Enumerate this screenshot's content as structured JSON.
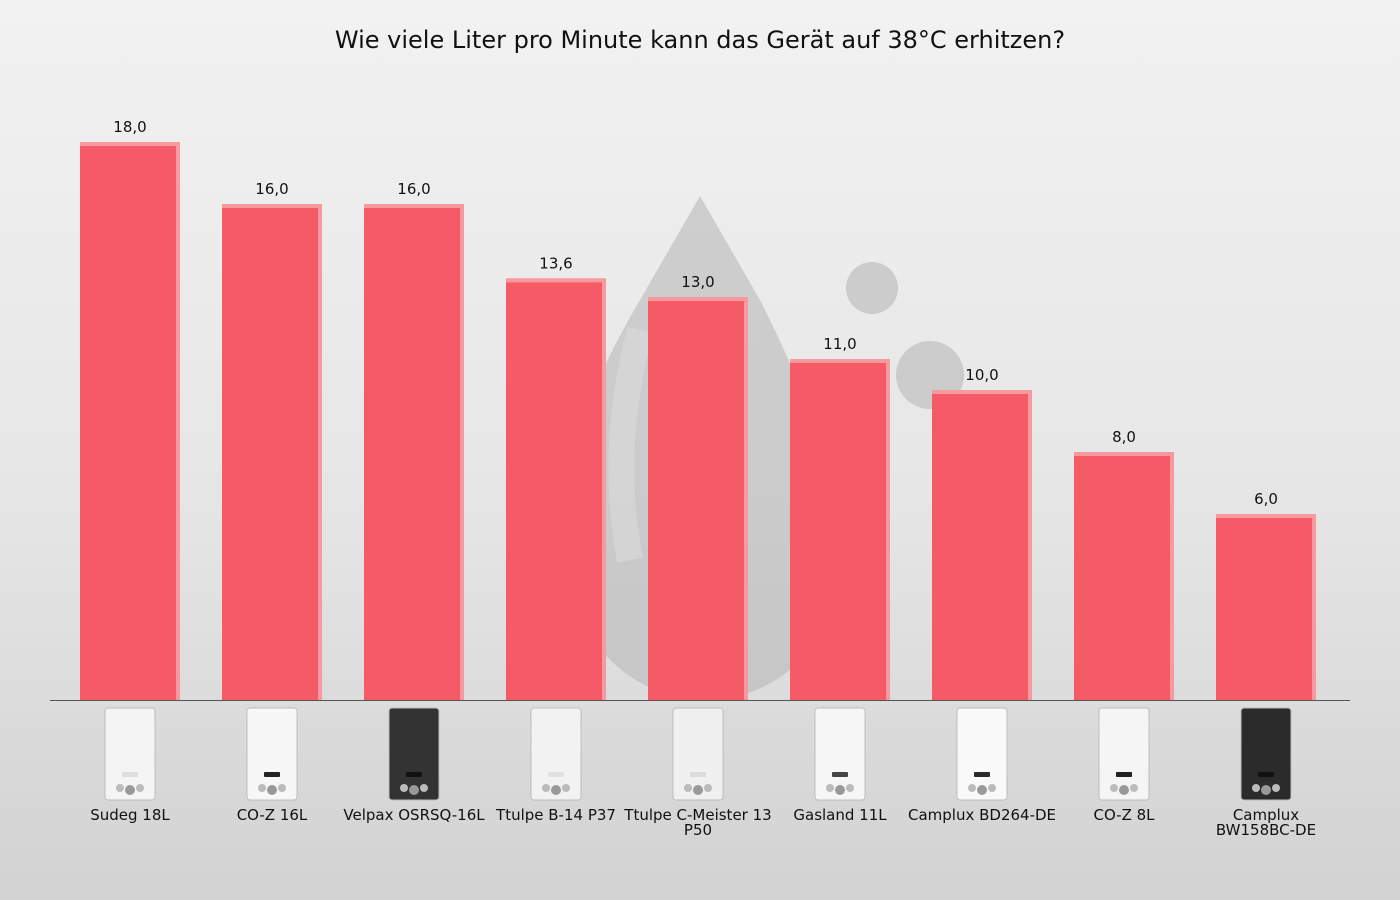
{
  "chart_data": {
    "type": "bar",
    "title": "Wie viele Liter pro Minute kann das Gerät auf 38°C erhitzen?",
    "categories": [
      "Sudeg 18L",
      "CO-Z 16L",
      "Velpax OSRSQ-16L",
      "Ttulpe B-14 P37",
      "Ttulpe C-Meister 13 P50",
      "Gasland 11L",
      "Camplux BD264-DE",
      "CO-Z 8L",
      "Camplux BW158BC-DE"
    ],
    "values": [
      18.0,
      16.0,
      16.0,
      13.6,
      13.0,
      11.0,
      10.0,
      8.0,
      6.0
    ],
    "value_labels": [
      "18,0",
      "16,0",
      "16,0",
      "13,6",
      "13,0",
      "11,0",
      "10,0",
      "8,0",
      "6,0"
    ],
    "ylim": [
      0,
      18
    ],
    "xlabel": "",
    "ylabel": "",
    "grid": false,
    "legend": "none",
    "bar_color": "#f55b66",
    "bar_top_color": "#f79aa0"
  },
  "thumbnails": [
    {
      "icon": "water-heater-white-icon",
      "body": "#f4f4f4",
      "panel": "#dedede"
    },
    {
      "icon": "water-heater-white-icon",
      "body": "#f7f7f7",
      "panel": "#222222"
    },
    {
      "icon": "water-heater-black-icon",
      "body": "#333333",
      "panel": "#111111"
    },
    {
      "icon": "water-heater-white-icon",
      "body": "#f2f2f2",
      "panel": "#e0e0e0"
    },
    {
      "icon": "water-heater-white-icon",
      "body": "#f0f0f0",
      "panel": "#dcdcdc"
    },
    {
      "icon": "water-heater-white-icon",
      "body": "#f6f6f6",
      "panel": "#444444"
    },
    {
      "icon": "water-heater-white-icon",
      "body": "#f9f9f9",
      "panel": "#2a2a2a"
    },
    {
      "icon": "water-heater-white-icon",
      "body": "#f5f5f5",
      "panel": "#222222"
    },
    {
      "icon": "water-heater-black-icon",
      "body": "#2b2b2b",
      "panel": "#111111"
    }
  ]
}
